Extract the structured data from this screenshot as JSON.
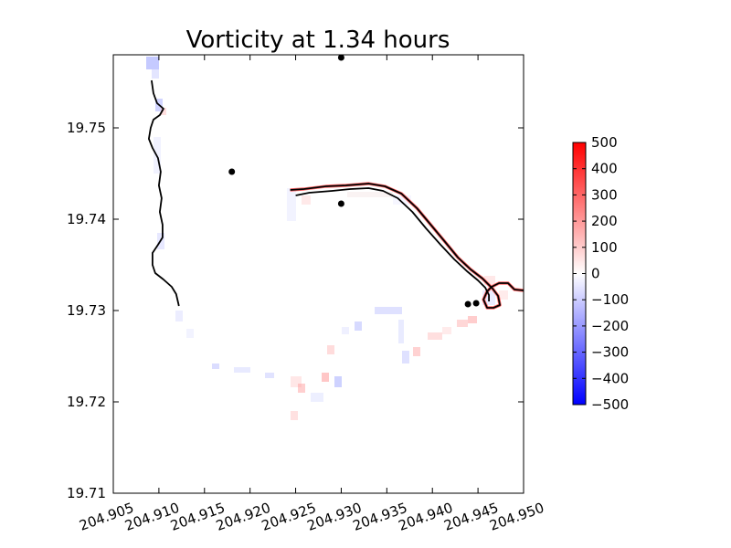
{
  "chart_data": {
    "type": "heatmap",
    "title": "Vorticity at 1.34 hours",
    "xlabel": "",
    "ylabel": "",
    "xlim": [
      204.905,
      204.95
    ],
    "ylim": [
      19.71,
      19.758
    ],
    "x_ticks": [
      204.905,
      204.91,
      204.915,
      204.92,
      204.925,
      204.93,
      204.935,
      204.94,
      204.945,
      204.95
    ],
    "x_tick_labels": [
      "204.905",
      "204.910",
      "204.915",
      "204.920",
      "204.925",
      "204.930",
      "204.935",
      "204.940",
      "204.945",
      "204.950"
    ],
    "y_ticks": [
      19.71,
      19.72,
      19.73,
      19.74,
      19.75
    ],
    "y_tick_labels": [
      "19.71",
      "19.72",
      "19.73",
      "19.74",
      "19.75"
    ],
    "grid": false,
    "colormap": "bwr",
    "colorbar": {
      "vmin": -500,
      "vmax": 500,
      "ticks": [
        500,
        400,
        300,
        200,
        100,
        0,
        -100,
        -200,
        -300,
        -400,
        -500
      ],
      "tick_labels": [
        "500",
        "400",
        "300",
        "200",
        "100",
        "0",
        "−100",
        "−200",
        "−300",
        "−400",
        "−500"
      ],
      "colors": {
        "max": "#ff0000",
        "mid": "#ffffff",
        "min": "#0000ff"
      }
    },
    "points": [
      {
        "x": 204.93,
        "y": 19.7577
      },
      {
        "x": 204.918,
        "y": 19.7452
      },
      {
        "x": 204.93,
        "y": 19.7417
      },
      {
        "x": 204.9439,
        "y": 19.7307
      },
      {
        "x": 204.9448,
        "y": 19.7308
      }
    ],
    "coastline_west": [
      [
        204.9092,
        19.7552
      ],
      [
        204.9094,
        19.7538
      ],
      [
        204.9098,
        19.7527
      ],
      [
        204.9105,
        19.7521
      ],
      [
        204.9101,
        19.7514
      ],
      [
        204.9094,
        19.7509
      ],
      [
        204.9091,
        19.75
      ],
      [
        204.9089,
        19.7488
      ],
      [
        204.9093,
        19.7478
      ],
      [
        204.9099,
        19.7467
      ],
      [
        204.9102,
        19.7452
      ],
      [
        204.91,
        19.7437
      ],
      [
        204.9103,
        19.7423
      ],
      [
        204.9101,
        19.7408
      ],
      [
        204.9104,
        19.7394
      ],
      [
        204.9104,
        19.738
      ],
      [
        204.9099,
        19.7372
      ],
      [
        204.9093,
        19.7363
      ],
      [
        204.9093,
        19.735
      ],
      [
        204.9096,
        19.7341
      ],
      [
        204.9105,
        19.7334
      ],
      [
        204.9114,
        19.7326
      ],
      [
        204.9119,
        19.7318
      ],
      [
        204.9122,
        19.7305
      ]
    ],
    "coastline_east_outer": [
      [
        204.9244,
        19.7432
      ],
      [
        204.9259,
        19.7433
      ],
      [
        204.9283,
        19.7436
      ],
      [
        204.9305,
        19.7437
      ],
      [
        204.933,
        19.7439
      ],
      [
        204.9348,
        19.7436
      ],
      [
        204.9366,
        19.7428
      ],
      [
        204.9383,
        19.7412
      ],
      [
        204.9399,
        19.7393
      ],
      [
        204.9414,
        19.7375
      ],
      [
        204.9428,
        19.7358
      ],
      [
        204.9442,
        19.7345
      ],
      [
        204.9455,
        19.7335
      ],
      [
        204.9466,
        19.7324
      ],
      [
        204.9472,
        19.7316
      ],
      [
        204.9474,
        19.7306
      ],
      [
        204.9467,
        19.7303
      ],
      [
        204.946,
        19.7303
      ],
      [
        204.9456,
        19.7312
      ],
      [
        204.946,
        19.7321
      ],
      [
        204.9465,
        19.7326
      ],
      [
        204.9473,
        19.733
      ],
      [
        204.9483,
        19.733
      ],
      [
        204.949,
        19.7323
      ],
      [
        204.95,
        19.7322
      ]
    ],
    "coastline_east_inner": [
      [
        204.925,
        19.7426
      ],
      [
        204.9265,
        19.7429
      ],
      [
        204.929,
        19.7431
      ],
      [
        204.931,
        19.7433
      ],
      [
        204.933,
        19.7434
      ],
      [
        204.9346,
        19.7431
      ],
      [
        204.9362,
        19.7423
      ],
      [
        204.9378,
        19.7408
      ],
      [
        204.9393,
        19.739
      ],
      [
        204.9409,
        19.7372
      ],
      [
        204.9424,
        19.7356
      ],
      [
        204.9438,
        19.7343
      ],
      [
        204.945,
        19.7333
      ],
      [
        204.9458,
        19.7325
      ],
      [
        204.9462,
        19.7317
      ],
      [
        204.9462,
        19.731
      ]
    ]
  }
}
